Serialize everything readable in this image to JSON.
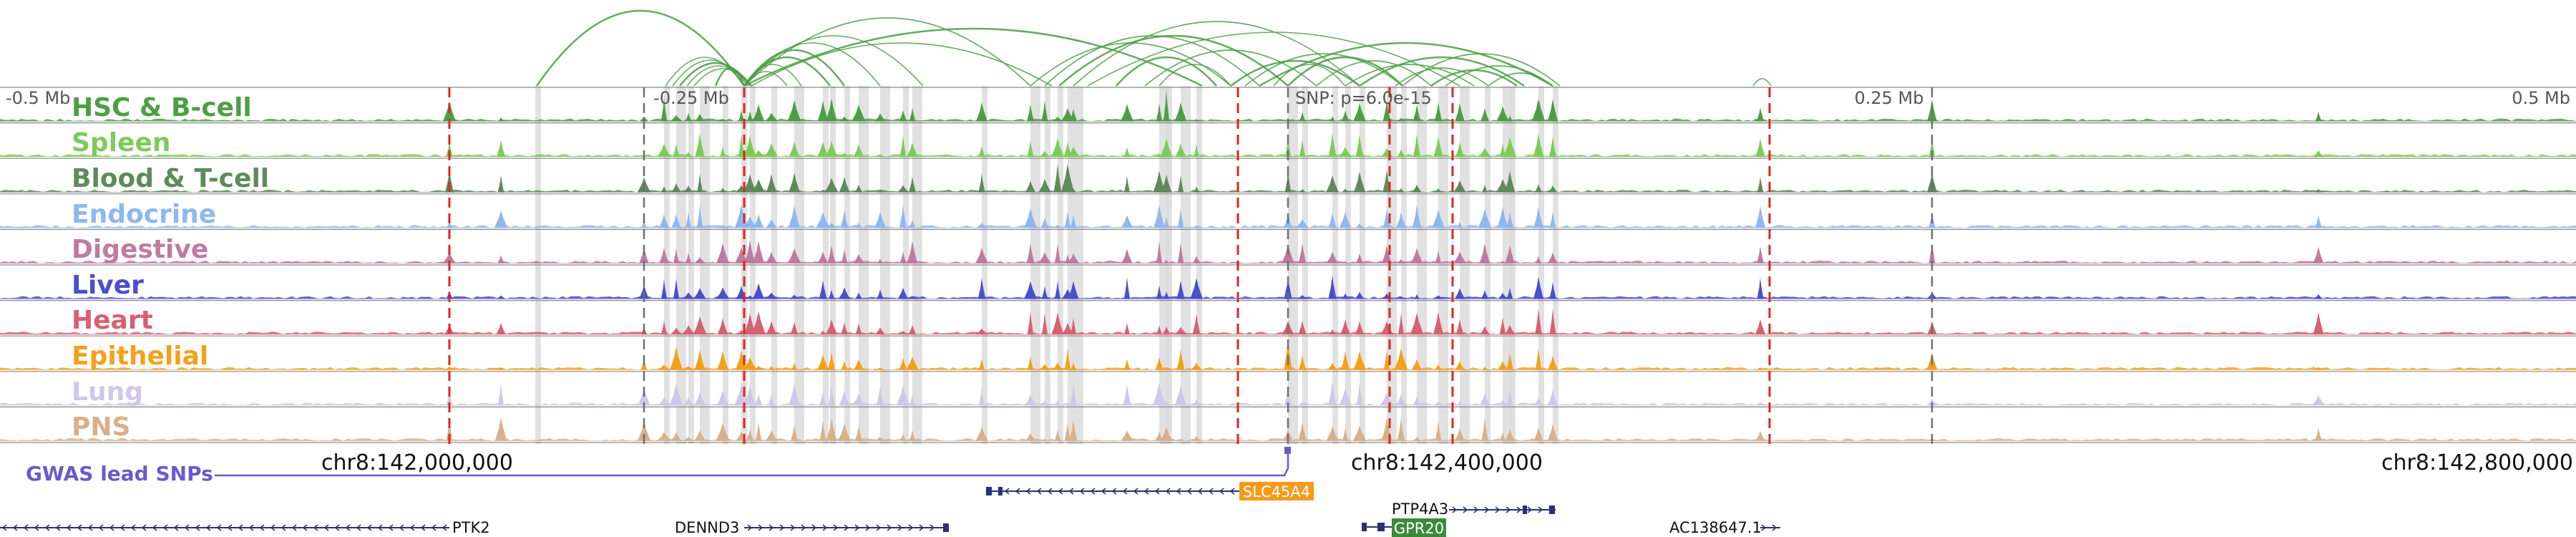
{
  "colors": {
    "arc": "#4a9e44",
    "ruler": "#6f6f6f",
    "highlight": "#dcdcdc",
    "snp_line": "#e0251f",
    "gwas": "#6a5acd",
    "gene": "#2b2f7a",
    "gene_highlight_orange": "#f59a1a",
    "gene_highlight_green": "#3a8a3a"
  },
  "ruler": {
    "labels": [
      {
        "text": "-0.5 Mb",
        "align": "left"
      },
      {
        "text": "-0.25 Mb",
        "align": "center"
      },
      {
        "text": "SNP: p=6.0e-15",
        "align": "left"
      },
      {
        "text": "0.25 Mb",
        "align": "center"
      },
      {
        "text": "0.5 Mb",
        "align": "right"
      }
    ]
  },
  "tracks": [
    {
      "label": "HSC & B-cell",
      "color": "#4e9e45"
    },
    {
      "label": "Spleen",
      "color": "#7ecb5a"
    },
    {
      "label": "Blood & T-cell",
      "color": "#5f8a5c"
    },
    {
      "label": "Endocrine",
      "color": "#8fb7f0"
    },
    {
      "label": "Digestive",
      "color": "#c07aa0"
    },
    {
      "label": "Liver",
      "color": "#4a4ecf"
    },
    {
      "label": "Heart",
      "color": "#d95f73"
    },
    {
      "label": "Epithelial",
      "color": "#f5a01a"
    },
    {
      "label": "Lung",
      "color": "#cfc8ea"
    },
    {
      "label": "PNS",
      "color": "#d8b08c"
    }
  ],
  "coordinates": {
    "labels": [
      "chr8:142,000,000",
      "chr8:142,400,000",
      "chr8:142,800,000"
    ]
  },
  "gwas": {
    "label": "GWAS lead SNPs"
  },
  "genes": [
    {
      "name": "SLC45A4",
      "highlight": "orange"
    },
    {
      "name": "PTP4A3",
      "highlight": ""
    },
    {
      "name": "GPR20",
      "highlight": "green"
    },
    {
      "name": "PTK2",
      "highlight": ""
    },
    {
      "name": "DENND3",
      "highlight": ""
    },
    {
      "name": "AC138647.1",
      "highlight": ""
    }
  ]
}
